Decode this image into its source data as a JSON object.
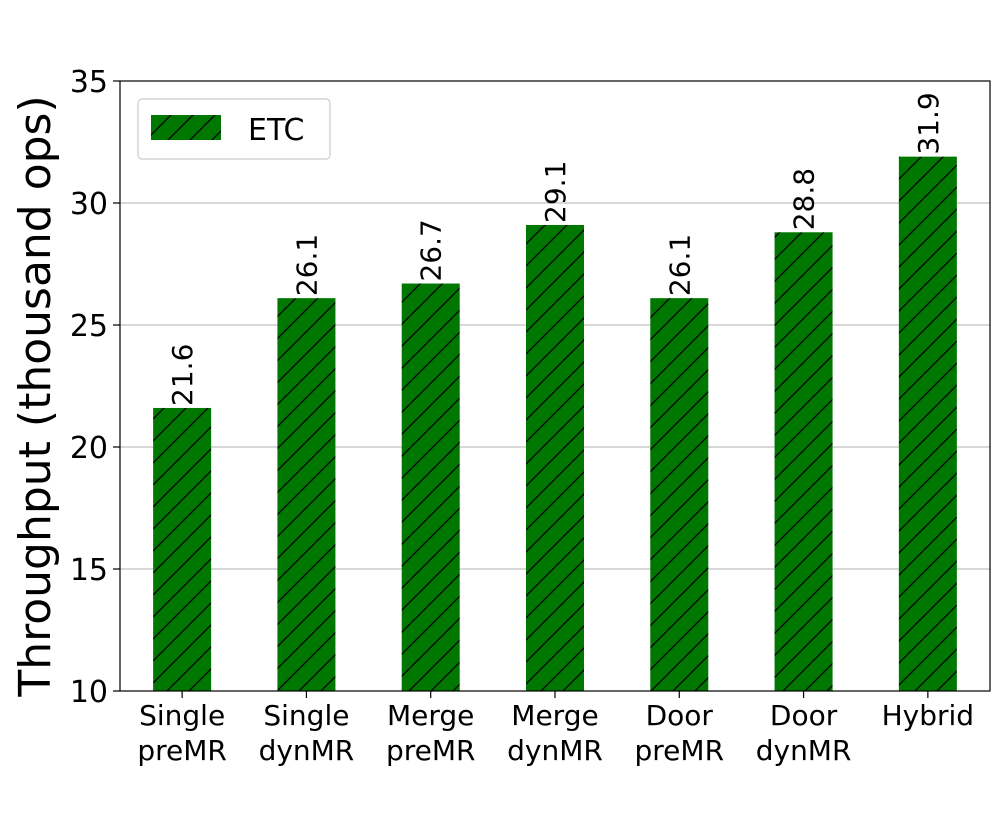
{
  "chart_data": {
    "type": "bar",
    "categories": [
      [
        "Single",
        "preMR"
      ],
      [
        "Single",
        "dynMR"
      ],
      [
        "Merge",
        "preMR"
      ],
      [
        "Merge",
        "dynMR"
      ],
      [
        "Door",
        "preMR"
      ],
      [
        "Door",
        "dynMR"
      ],
      [
        "Hybrid"
      ]
    ],
    "series": [
      {
        "name": "ETC",
        "color": "#007700",
        "hatch": "diagonal",
        "values": [
          21.6,
          26.1,
          26.7,
          29.1,
          26.1,
          28.8,
          31.9
        ]
      }
    ],
    "data_labels": [
      "21.6",
      "26.1",
      "26.7",
      "29.1",
      "26.1",
      "28.8",
      "31.9"
    ],
    "ylabel": "Throughput (thousand ops)",
    "ylim": [
      10,
      35
    ],
    "yticks": [
      10,
      15,
      20,
      25,
      30,
      35
    ],
    "grid": "y",
    "legend_position": "top-left"
  }
}
